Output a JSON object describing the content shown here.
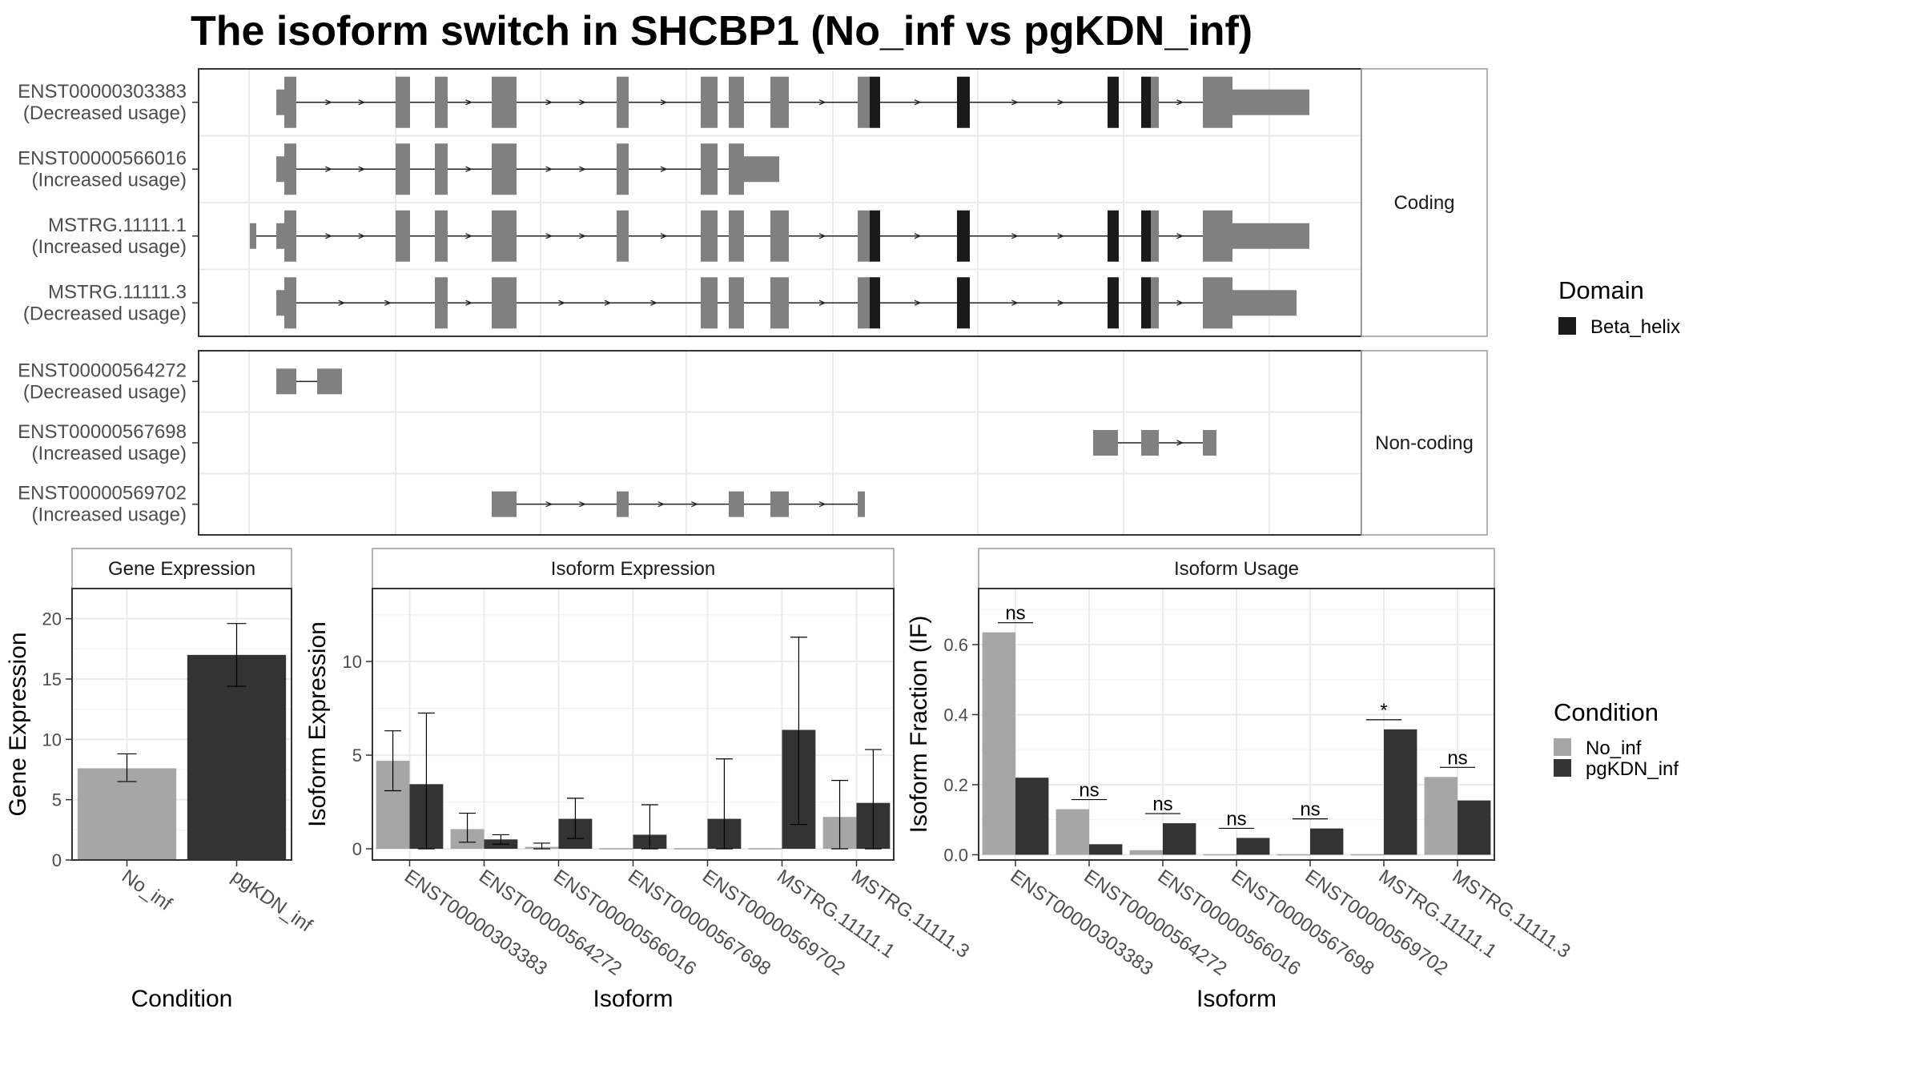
{
  "title": "The isoform switch in SHCBP1 (No_inf vs pgKDN_inf)",
  "colors": {
    "exon": "#808080",
    "domain": "#1a1a1a",
    "no_inf": "#a6a6a6",
    "pgkdn_inf": "#333333",
    "grid": "#ebebeb",
    "frame": "#333333",
    "strip_border": "#9a9a9a"
  },
  "gene_structure": {
    "facets": [
      {
        "label": "Coding",
        "transcripts": [
          {
            "id": "ENST00000303383",
            "usage": "(Decreased usage)"
          },
          {
            "id": "ENST00000566016",
            "usage": "(Increased usage)"
          },
          {
            "id": "MSTRG.11111.1",
            "usage": "(Increased usage)"
          },
          {
            "id": "MSTRG.11111.3",
            "usage": "(Decreased usage)"
          }
        ]
      },
      {
        "label": "Non-coding",
        "transcripts": [
          {
            "id": "ENST00000564272",
            "usage": "(Decreased usage)"
          },
          {
            "id": "ENST00000567698",
            "usage": "(Increased usage)"
          },
          {
            "id": "ENST00000569702",
            "usage": "(Increased usage)"
          }
        ]
      }
    ],
    "legend": {
      "title": "Domain",
      "items": [
        {
          "name": "Beta_helix",
          "color": "#1a1a1a"
        }
      ]
    }
  },
  "chart_data": [
    {
      "type": "bar",
      "panel": "Gene Expression",
      "categories": [
        "No_inf",
        "pgKDN_inf"
      ],
      "values": [
        7.6,
        17.0
      ],
      "error_low": [
        6.5,
        14.4
      ],
      "error_high": [
        8.8,
        19.6
      ],
      "xlabel": "Condition",
      "ylabel": "Gene Expression",
      "ylim": [
        0,
        22.5
      ],
      "yticks": [
        0,
        5,
        10,
        15,
        20
      ]
    },
    {
      "type": "bar",
      "panel": "Isoform Expression",
      "categories": [
        "ENST00000303383",
        "ENST00000564272",
        "ENST00000566016",
        "ENST00000567698",
        "ENST00000569702",
        "MSTRG.11111.1",
        "MSTRG.11111.3"
      ],
      "series": [
        {
          "name": "No_inf",
          "values": [
            4.7,
            1.05,
            0.1,
            0,
            0,
            0,
            1.7
          ],
          "error_low": [
            3.1,
            0.35,
            0,
            0,
            0,
            0,
            0
          ],
          "error_high": [
            6.3,
            1.9,
            0.3,
            0,
            0,
            0,
            3.65
          ]
        },
        {
          "name": "pgKDN_inf",
          "values": [
            3.45,
            0.5,
            1.6,
            0.75,
            1.6,
            6.35,
            2.45
          ],
          "error_low": [
            0,
            0.25,
            0.55,
            0,
            0,
            1.3,
            0
          ],
          "error_high": [
            7.25,
            0.75,
            2.7,
            2.35,
            4.8,
            11.3,
            5.3
          ]
        }
      ],
      "xlabel": "Isoform",
      "ylabel": "Isoform Expression",
      "ylim": [
        -0.6,
        13.9
      ],
      "yticks": [
        0,
        5,
        10
      ]
    },
    {
      "type": "bar",
      "panel": "Isoform Usage",
      "categories": [
        "ENST00000303383",
        "ENST00000564272",
        "ENST00000566016",
        "ENST00000567698",
        "ENST00000569702",
        "MSTRG.11111.1",
        "MSTRG.11111.3"
      ],
      "series": [
        {
          "name": "No_inf",
          "values": [
            0.635,
            0.13,
            0.013,
            0,
            0,
            0,
            0.222
          ]
        },
        {
          "name": "pgKDN_inf",
          "values": [
            0.22,
            0.03,
            0.09,
            0.048,
            0.075,
            0.358,
            0.155
          ]
        }
      ],
      "significance": [
        "ns",
        "ns",
        "ns",
        "ns",
        "ns",
        "*",
        "ns"
      ],
      "xlabel": "Isoform",
      "ylabel": "Isoform Fraction (IF)",
      "ylim": [
        -0.015,
        0.76
      ],
      "yticks": [
        0.0,
        0.2,
        0.4,
        0.6
      ]
    }
  ],
  "condition_legend": {
    "title": "Condition",
    "items": [
      {
        "name": "No_inf",
        "color": "#a6a6a6"
      },
      {
        "name": "pgKDN_inf",
        "color": "#333333"
      }
    ]
  }
}
